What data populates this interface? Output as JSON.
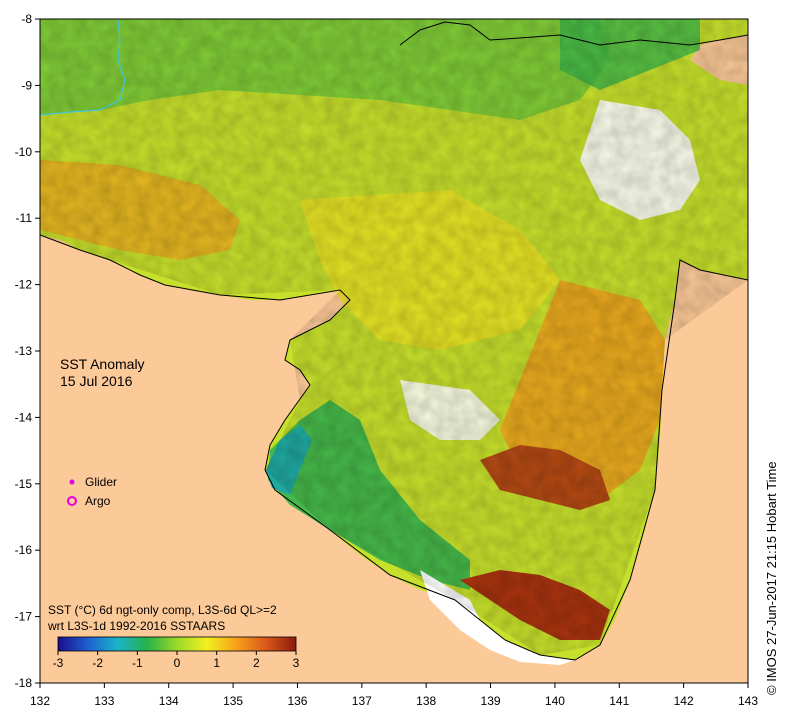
{
  "map": {
    "title_line1": "SST Anomaly",
    "title_line2": "15 Jul 2016",
    "x_ticks": [
      "132",
      "133",
      "134",
      "135",
      "136",
      "137",
      "138",
      "139",
      "140",
      "141",
      "142",
      "143"
    ],
    "y_ticks": [
      "-8",
      "-9",
      "-10",
      "-11",
      "-12",
      "-13",
      "-14",
      "-15",
      "-16",
      "-17",
      "-18"
    ],
    "land_color": "#fcc998",
    "nodata_color": "#ffffff"
  },
  "legend": {
    "glider_label": "Glider",
    "argo_label": "Argo",
    "marker_color": "#e000e0"
  },
  "colorbar": {
    "desc_line1": "SST (°C) 6d ngt-only comp, L3S-6d QL>=2",
    "desc_line2": "wrt L3S-1d 1992-2016 SSTAARS",
    "ticks": [
      "-3",
      "-2",
      "-1",
      "0",
      "1",
      "2",
      "3"
    ],
    "colors": [
      "#1a0d8c",
      "#1f5fd1",
      "#1ab3c9",
      "#27b24a",
      "#9bd92a",
      "#f2f01f",
      "#f7a11a",
      "#d9571a",
      "#8c1a0d"
    ]
  },
  "credit": "© IMOS 27-Jun-2017 21:15 Hobart Time"
}
